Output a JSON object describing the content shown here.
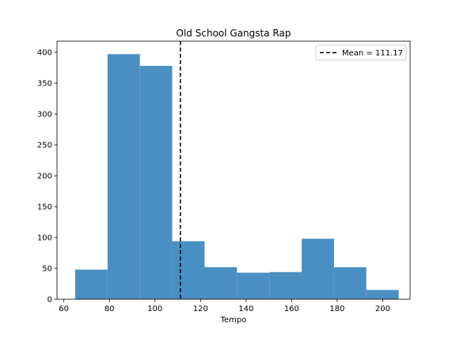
{
  "chart_data": {
    "type": "bar",
    "subtype": "histogram",
    "title": "Old School Gangsta Rap",
    "xlabel": "Tempo",
    "ylabel": "",
    "xlim": [
      57,
      212
    ],
    "ylim": [
      0,
      418
    ],
    "bins": [
      {
        "x0": 65.0,
        "x1": 79.2,
        "count": 48
      },
      {
        "x0": 79.2,
        "x1": 93.4,
        "count": 397
      },
      {
        "x0": 93.4,
        "x1": 107.6,
        "count": 378
      },
      {
        "x0": 107.6,
        "x1": 121.8,
        "count": 94
      },
      {
        "x0": 121.8,
        "x1": 136.0,
        "count": 52
      },
      {
        "x0": 136.0,
        "x1": 150.2,
        "count": 43
      },
      {
        "x0": 150.2,
        "x1": 164.4,
        "count": 44
      },
      {
        "x0": 164.4,
        "x1": 178.6,
        "count": 98
      },
      {
        "x0": 178.6,
        "x1": 192.8,
        "count": 52
      },
      {
        "x0": 192.8,
        "x1": 207.0,
        "count": 15
      }
    ],
    "x_ticks": [
      60,
      80,
      100,
      120,
      140,
      160,
      180,
      200
    ],
    "y_ticks": [
      0,
      50,
      100,
      150,
      200,
      250,
      300,
      350,
      400
    ],
    "mean": 111.17,
    "legend": {
      "label": "Mean = 111.17",
      "position": "top-right"
    },
    "grid": false,
    "colors": {
      "bar": "#4a8fc2",
      "mean_line": "#000000"
    }
  }
}
